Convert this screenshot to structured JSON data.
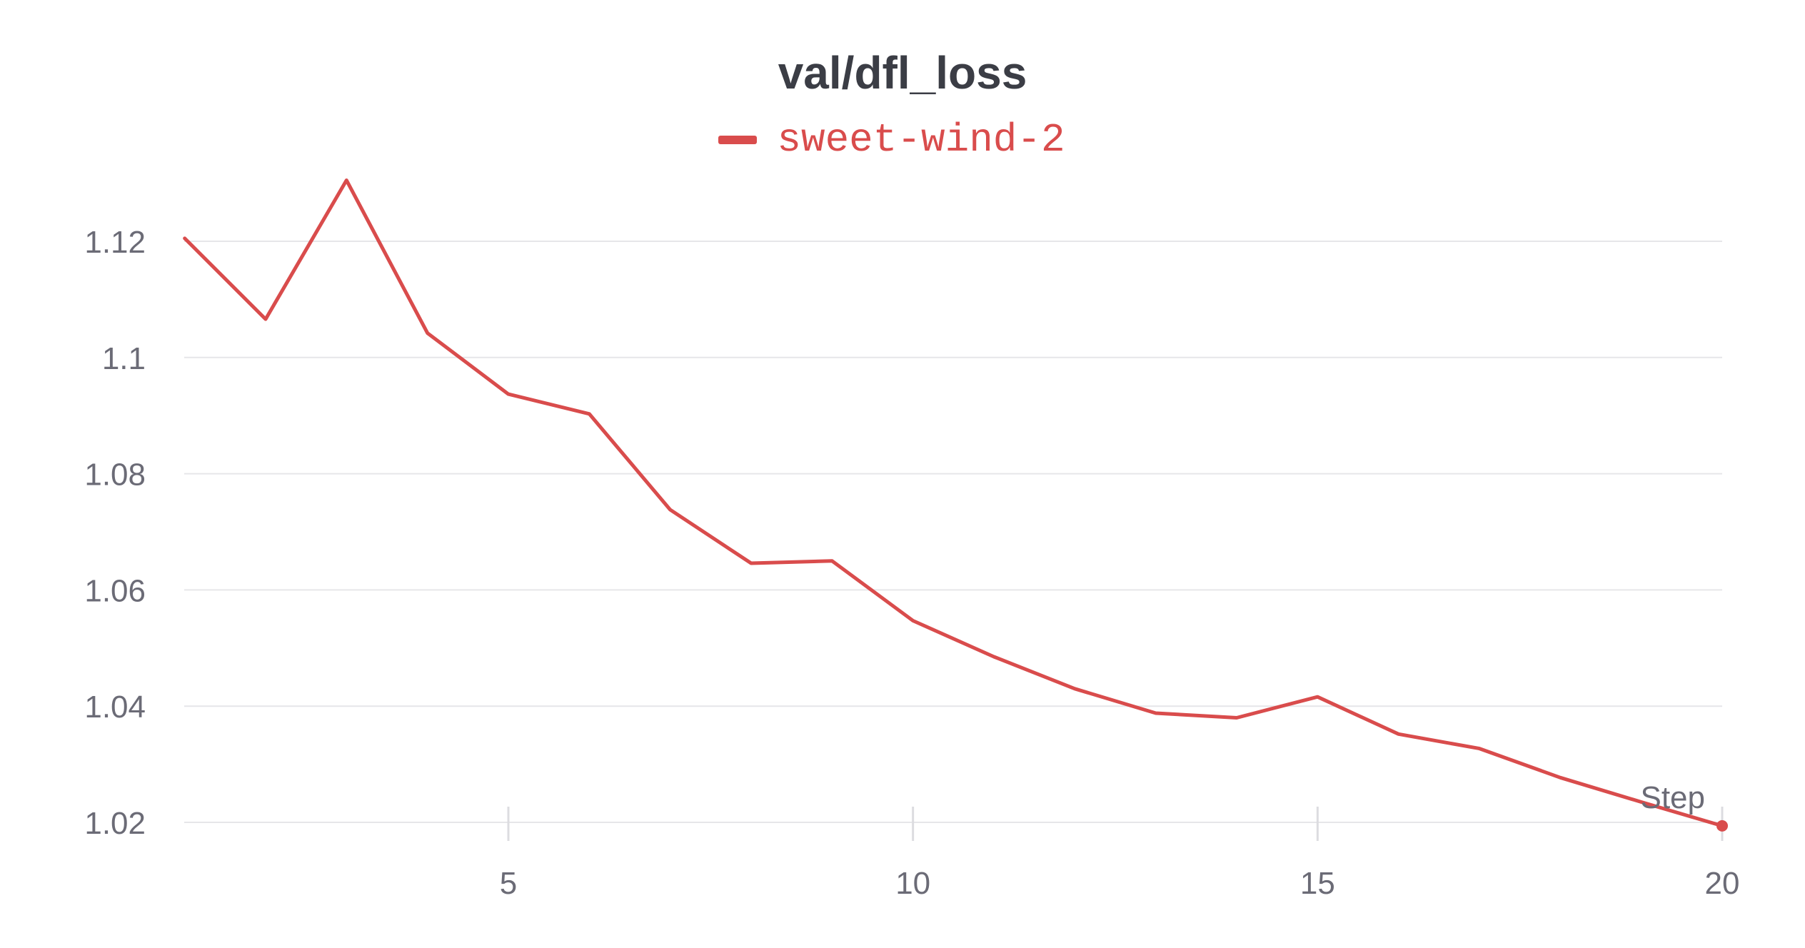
{
  "chart_data": {
    "type": "line",
    "title": "val/dfl_loss",
    "xlabel": "Step",
    "ylabel": "",
    "xlim": [
      1,
      20
    ],
    "ylim": [
      1.015,
      1.135
    ],
    "xticks": [
      5,
      10,
      15,
      20
    ],
    "yticks": [
      1.02,
      1.04,
      1.06,
      1.08,
      1.1,
      1.12
    ],
    "ytick_labels": [
      "1.02",
      "1.04",
      "1.06",
      "1.08",
      "1.1",
      "1.12"
    ],
    "xtick_labels": [
      "5",
      "10",
      "15",
      "20"
    ],
    "grid": true,
    "legend_position": "top-center",
    "series": [
      {
        "name": "sweet-wind-2",
        "color": "#d94c4c",
        "x": [
          1,
          2,
          3,
          4,
          5,
          6,
          7,
          8,
          9,
          10,
          11,
          12,
          13,
          14,
          15,
          16,
          17,
          18,
          19,
          20
        ],
        "y": [
          1.1205,
          1.1066,
          1.1305,
          1.1042,
          1.0937,
          1.0903,
          1.0738,
          1.0646,
          1.065,
          1.0547,
          1.0485,
          1.043,
          1.0388,
          1.038,
          1.0416,
          1.0352,
          1.0327,
          1.0277,
          1.0235,
          1.0194
        ]
      }
    ]
  }
}
